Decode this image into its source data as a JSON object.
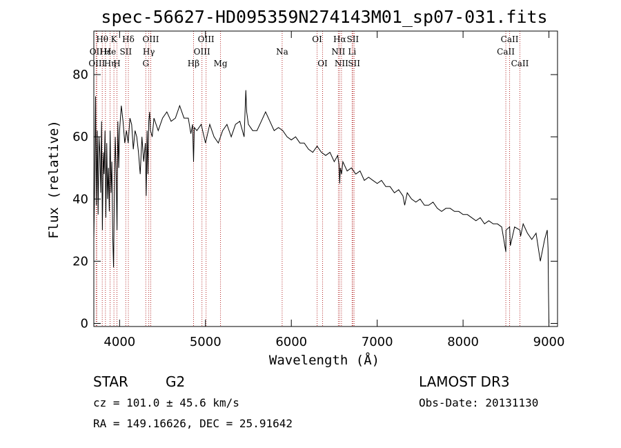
{
  "chart_data": {
    "type": "line",
    "title": "spec-56627-HD095359N274143M01_sp07-031.fits",
    "xlabel": "Wavelength (Å)",
    "ylabel": "Flux (relative)",
    "xlim": [
      3700,
      9100
    ],
    "ylim": [
      -1,
      94
    ],
    "xticks": [
      4000,
      5000,
      6000,
      7000,
      8000,
      9000
    ],
    "yticks": [
      0,
      20,
      40,
      60,
      80
    ],
    "series": [
      {
        "name": "flux",
        "x": [
          3700,
          3710,
          3720,
          3730,
          3740,
          3750,
          3760,
          3770,
          3780,
          3790,
          3800,
          3810,
          3820,
          3830,
          3840,
          3850,
          3860,
          3870,
          3880,
          3890,
          3900,
          3910,
          3920,
          3930,
          3940,
          3950,
          3960,
          3970,
          3980,
          3990,
          4000,
          4020,
          4040,
          4060,
          4080,
          4100,
          4120,
          4140,
          4160,
          4180,
          4200,
          4220,
          4240,
          4260,
          4280,
          4300,
          4310,
          4320,
          4330,
          4340,
          4350,
          4360,
          4380,
          4400,
          4450,
          4500,
          4550,
          4600,
          4650,
          4700,
          4750,
          4800,
          4830,
          4850,
          4861,
          4870,
          4900,
          4950,
          5000,
          5050,
          5100,
          5150,
          5200,
          5250,
          5300,
          5350,
          5400,
          5450,
          5470,
          5480,
          5500,
          5550,
          5600,
          5650,
          5700,
          5750,
          5800,
          5850,
          5900,
          5950,
          6000,
          6050,
          6100,
          6150,
          6200,
          6250,
          6300,
          6350,
          6400,
          6450,
          6500,
          6540,
          6555,
          6563,
          6570,
          6585,
          6600,
          6650,
          6700,
          6750,
          6800,
          6850,
          6900,
          6950,
          7000,
          7050,
          7100,
          7150,
          7200,
          7250,
          7300,
          7320,
          7350,
          7400,
          7450,
          7500,
          7550,
          7600,
          7650,
          7700,
          7750,
          7800,
          7850,
          7900,
          7950,
          8000,
          8050,
          8100,
          8150,
          8200,
          8250,
          8300,
          8350,
          8400,
          8450,
          8498,
          8500,
          8542,
          8550,
          8600,
          8662,
          8670,
          8700,
          8750,
          8800,
          8850,
          8900,
          8950,
          8980,
          8990,
          8995,
          9000
        ],
        "values": [
          27,
          45,
          73,
          38,
          62,
          35,
          60,
          55,
          42,
          65,
          30,
          55,
          48,
          62,
          34,
          58,
          40,
          50,
          36,
          62,
          42,
          52,
          28,
          18,
          45,
          60,
          48,
          30,
          65,
          50,
          62,
          70,
          65,
          58,
          62,
          58,
          66,
          64,
          56,
          62,
          60,
          55,
          48,
          60,
          52,
          58,
          41,
          62,
          48,
          65,
          68,
          62,
          60,
          66,
          62,
          66,
          68,
          65,
          66,
          70,
          66,
          66,
          61,
          64,
          52,
          63,
          62,
          64,
          58,
          64,
          60,
          58,
          62,
          64,
          60,
          64,
          65,
          60,
          75,
          68,
          64,
          62,
          62,
          65,
          68,
          65,
          62,
          63,
          62,
          60,
          59,
          60,
          58,
          58,
          56,
          55,
          57,
          55,
          54,
          55,
          52,
          54,
          51,
          45,
          50,
          48,
          52,
          49,
          50,
          48,
          49,
          46,
          47,
          46,
          45,
          46,
          44,
          44,
          42,
          43,
          41,
          38,
          42,
          40,
          39,
          40,
          38,
          38,
          39,
          37,
          36,
          37,
          37,
          36,
          36,
          35,
          35,
          34,
          33,
          34,
          32,
          33,
          32,
          32,
          31,
          23,
          30,
          31,
          25,
          31,
          30,
          28,
          32,
          29,
          27,
          29,
          20,
          27,
          30,
          24,
          10,
          0
        ]
      }
    ],
    "line_markers": [
      {
        "label": "Hθ",
        "wave": 3798,
        "row": 1
      },
      {
        "label": "OII",
        "wave": 3727,
        "row": 2
      },
      {
        "label": "OIII",
        "wave": 3735,
        "row": 3
      },
      {
        "label": "Hε",
        "wave": 3835,
        "row": 2
      },
      {
        "label": "Hη",
        "wave": 3889,
        "row": 3
      },
      {
        "label": "K",
        "wave": 3934,
        "row": 1
      },
      {
        "label": "He",
        "wave": 3889,
        "row": 2
      },
      {
        "label": "SII",
        "wave": 4072,
        "row": 2
      },
      {
        "label": "H",
        "wave": 3969,
        "row": 3
      },
      {
        "label": "Hδ",
        "wave": 4102,
        "row": 1
      },
      {
        "label": "OIII",
        "wave": 4363,
        "row": 1
      },
      {
        "label": "Hγ",
        "wave": 4340,
        "row": 2
      },
      {
        "label": "G",
        "wave": 4305,
        "row": 3
      },
      {
        "label": "OIII",
        "wave": 5007,
        "row": 1
      },
      {
        "label": "OIII",
        "wave": 4959,
        "row": 2
      },
      {
        "label": "Hβ",
        "wave": 4861,
        "row": 3
      },
      {
        "label": "Mg",
        "wave": 5175,
        "row": 3
      },
      {
        "label": "Na",
        "wave": 5893,
        "row": 2
      },
      {
        "label": "OI",
        "wave": 6300,
        "row": 1
      },
      {
        "label": "OI",
        "wave": 6364,
        "row": 3
      },
      {
        "label": "Hα",
        "wave": 6563,
        "row": 1
      },
      {
        "label": "SII",
        "wave": 6716,
        "row": 1
      },
      {
        "label": "NII",
        "wave": 6548,
        "row": 2
      },
      {
        "label": "Li",
        "wave": 6708,
        "row": 2
      },
      {
        "label": "NII",
        "wave": 6584,
        "row": 3
      },
      {
        "label": "SII",
        "wave": 6731,
        "row": 3
      },
      {
        "label": "CaII",
        "wave": 8542,
        "row": 1
      },
      {
        "label": "CaII",
        "wave": 8498,
        "row": 2
      },
      {
        "label": "CaII",
        "wave": 8662,
        "row": 3
      }
    ]
  },
  "info": {
    "object_type": "STAR",
    "subclass": "G2",
    "survey": "LAMOST DR3",
    "redshift": "cz = 101.0 ± 45.6 km/s",
    "obs_date": "Obs-Date: 20131130",
    "coords": "RA = 149.16626, DEC =  25.91642"
  },
  "colors": {
    "spectrum": "#000000",
    "marker_line": "#b22222"
  }
}
